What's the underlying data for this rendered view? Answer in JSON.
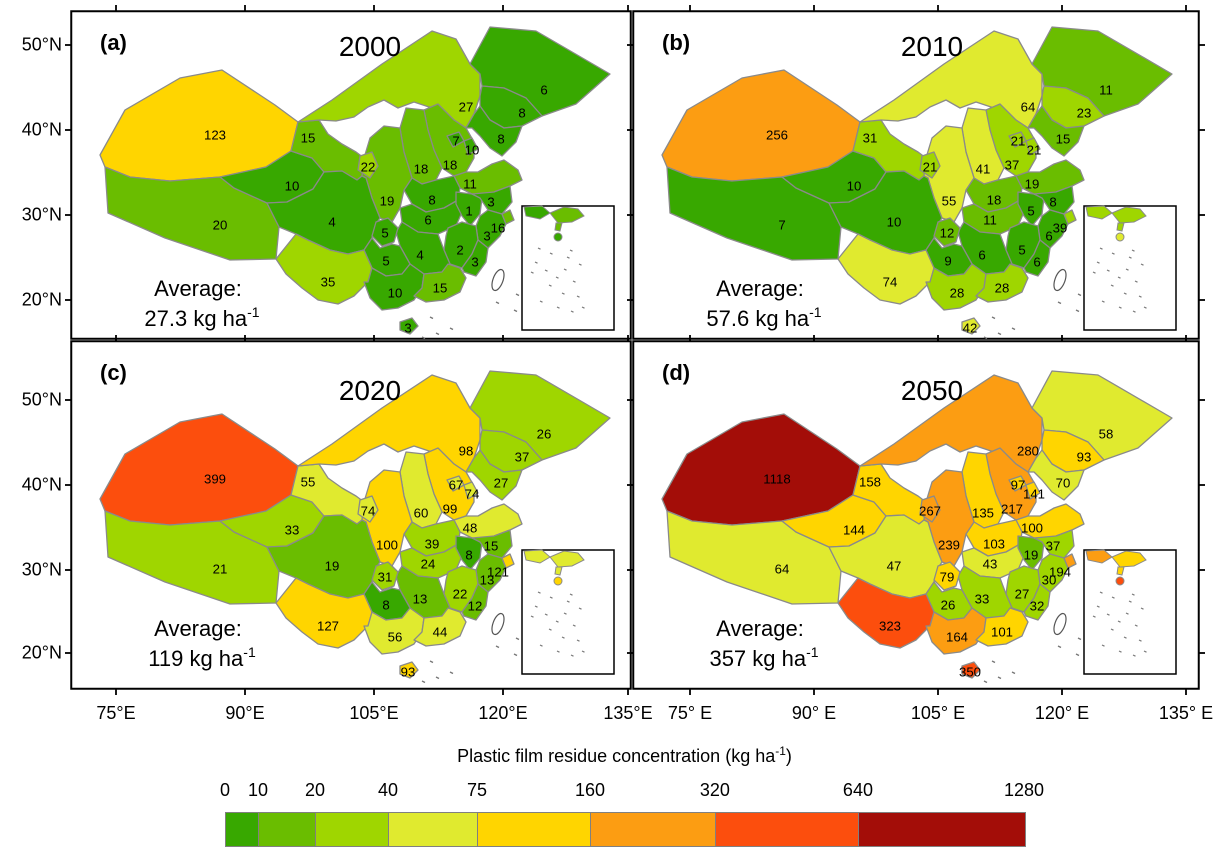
{
  "axes": {
    "lat_labels": [
      "50°N",
      "40°N",
      "30°N",
      "20°N"
    ],
    "lon_labels_left": [
      "75°E",
      "90°E",
      "105°E",
      "120°E",
      "135°E"
    ],
    "lon_labels_right": [
      "75° E",
      "90° E",
      "105° E",
      "120° E",
      "135° E"
    ]
  },
  "colorbar": {
    "title_main": "Plastic film residue concentration (kg ha",
    "title_sup": "-1",
    "title_close": ")",
    "tick_labels": [
      "0",
      "10",
      "20",
      "40",
      "75",
      "160",
      "320",
      "640",
      "1280"
    ]
  },
  "chart_data": {
    "type": "choropleth",
    "title": "Plastic film residue concentration (kg ha-1)",
    "unit": "kg ha-1",
    "region": "China provinces",
    "colorbar": {
      "breaks": [
        0,
        10,
        20,
        40,
        75,
        160,
        320,
        640,
        1280
      ],
      "colors": [
        "#38a800",
        "#6abd00",
        "#9fd600",
        "#e0ea2f",
        "#ffd500",
        "#fc9d12",
        "#fc4e0d",
        "#a30d08"
      ]
    },
    "provinces": [
      "Xinjiang",
      "Tibet",
      "Qinghai",
      "Gansu",
      "Inner Mongolia",
      "Heilongjiang",
      "Jilin",
      "Liaoning",
      "Beijing",
      "Tianjin",
      "Hebei",
      "Shanxi",
      "Shandong",
      "Henan",
      "Shaanxi",
      "Ningxia",
      "Hubei",
      "Anhui",
      "Jiangsu",
      "Shanghai",
      "Zhejiang",
      "Jiangxi",
      "Fujian",
      "Hunan",
      "Chongqing",
      "Sichuan",
      "Guizhou",
      "Yunnan",
      "Guangxi",
      "Guangdong",
      "Hainan"
    ],
    "series": [
      {
        "panel_tag": "(a)",
        "year": "2000",
        "average_prefix": "Average:",
        "average_main": "27.3 kg ha",
        "average_sup": "-1",
        "values": [
          123,
          20,
          10,
          15,
          27,
          6,
          8,
          8,
          7,
          10,
          18,
          18,
          11,
          8,
          19,
          22,
          6,
          1,
          3,
          16,
          3,
          2,
          3,
          4,
          5,
          4,
          5,
          35,
          10,
          15,
          3
        ]
      },
      {
        "panel_tag": "(b)",
        "year": "2010",
        "average_prefix": "Average:",
        "average_main": "57.6 kg ha",
        "average_sup": "-1",
        "values": [
          256,
          7,
          10,
          31,
          64,
          11,
          23,
          15,
          21,
          21,
          37,
          41,
          19,
          18,
          55,
          21,
          11,
          5,
          8,
          39,
          6,
          5,
          6,
          6,
          12,
          10,
          9,
          74,
          28,
          28,
          42
        ]
      },
      {
        "panel_tag": "(c)",
        "year": "2020",
        "average_prefix": "Average:",
        "average_main": "119 kg ha",
        "average_sup": "-1",
        "values": [
          399,
          21,
          33,
          55,
          98,
          26,
          37,
          27,
          67,
          74,
          99,
          60,
          48,
          39,
          100,
          74,
          24,
          8,
          15,
          121,
          13,
          22,
          12,
          13,
          31,
          19,
          8,
          127,
          56,
          44,
          93
        ]
      },
      {
        "panel_tag": "(d)",
        "year": "2050",
        "average_prefix": "Average:",
        "average_main": "357 kg ha",
        "average_sup": "-1",
        "values": [
          1118,
          64,
          144,
          158,
          280,
          58,
          93,
          70,
          97,
          141,
          217,
          135,
          100,
          103,
          239,
          267,
          43,
          19,
          37,
          194,
          30,
          27,
          32,
          33,
          79,
          47,
          26,
          323,
          164,
          101,
          350
        ]
      }
    ]
  }
}
